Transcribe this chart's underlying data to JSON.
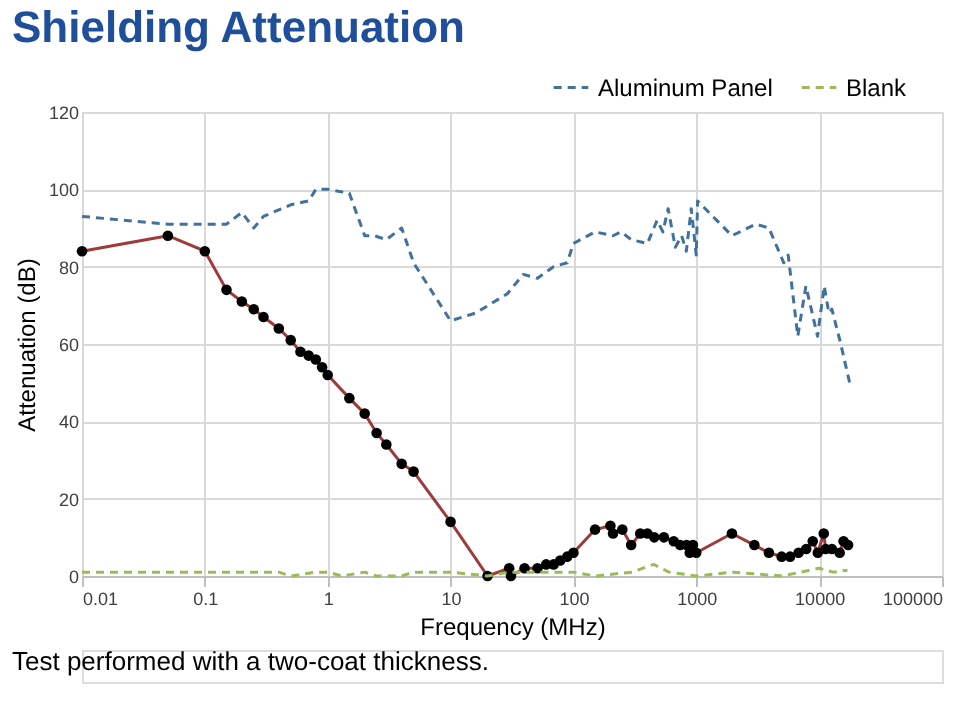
{
  "chart_data": {
    "type": "line",
    "title": "Shielding Attenuation",
    "xlabel": "Frequency (MHz)",
    "ylabel": "Attenuation (dB)",
    "annotations": [
      "Test performed with a two-coat thickness."
    ],
    "log": "x",
    "xlim": [
      0.01,
      100000
    ],
    "xticks": [
      0.01,
      0.1,
      1,
      10,
      100,
      1000,
      10000,
      100000
    ],
    "ylim": [
      0,
      120
    ],
    "yticks": [
      0,
      20,
      40,
      60,
      80,
      100,
      120
    ],
    "grid": true,
    "legend": "top right",
    "series": [
      {
        "name": "Aluminum Panel",
        "color": "#41719c",
        "line_style": "dashed",
        "marker": "none",
        "x": [
          0.01,
          0.05,
          0.15,
          0.2,
          0.25,
          0.3,
          0.5,
          0.7,
          0.8,
          1,
          1.5,
          2,
          2.4,
          3,
          4,
          5,
          10,
          16,
          29,
          39,
          51,
          69,
          89,
          100,
          150,
          210,
          245,
          295,
          400,
          480,
          535,
          590,
          675,
          760,
          830,
          910,
          1000,
          1025,
          1950,
          3050,
          3900,
          5150,
          5600,
          6700,
          7800,
          9700,
          11000,
          12000,
          12700,
          15000,
          17700
        ],
        "values": [
          93,
          91,
          91,
          94,
          90,
          93,
          96,
          97,
          100,
          100,
          99,
          88,
          88,
          87,
          90,
          81,
          66,
          68,
          73,
          78,
          77,
          80,
          81,
          86,
          89,
          88,
          89,
          87,
          86,
          92,
          89,
          95,
          85,
          88,
          84,
          95,
          83,
          97,
          88,
          91,
          90,
          81,
          83,
          62,
          75,
          62,
          75,
          68,
          69,
          60,
          50
        ]
      },
      {
        "color": "#9e3a3a",
        "line_style": "solid",
        "marker": "circle",
        "x": [
          0.01,
          0.05,
          0.1,
          0.15,
          0.2,
          0.25,
          0.3,
          0.4,
          0.5,
          0.6,
          0.7,
          0.8,
          0.9,
          1,
          1.5,
          2,
          2.5,
          3,
          4,
          5,
          10,
          20,
          30,
          31,
          40,
          51,
          60,
          69,
          78,
          89,
          100,
          150,
          200,
          210,
          250,
          295,
          350,
          400,
          455,
          545,
          655,
          740,
          835,
          885,
          940,
          1000,
          1950,
          2970,
          3900,
          4950,
          5800,
          6800,
          7850,
          8870,
          9750,
          10900,
          11300,
          12700,
          14700,
          15800,
          17200
        ],
        "values": [
          84,
          88,
          84,
          74,
          71,
          69,
          67,
          64,
          61,
          58,
          57,
          56,
          54,
          52,
          46,
          42,
          37,
          34,
          29,
          27,
          14,
          0,
          2,
          0,
          2,
          2,
          3,
          3,
          4,
          5,
          6,
          12,
          13,
          11,
          12,
          8,
          11,
          11,
          10,
          10,
          9,
          8,
          8,
          6,
          8,
          6,
          11,
          8,
          6,
          5,
          5,
          6,
          7,
          9,
          6,
          11,
          7,
          7,
          6,
          9,
          8
        ]
      },
      {
        "name": "Blank",
        "color": "#9bbb59",
        "line_style": "dashed",
        "marker": "none",
        "x": [
          0.01,
          0.4,
          0.5,
          0.8,
          1,
          1.3,
          2,
          2.5,
          4,
          5,
          10,
          20,
          30,
          50,
          100,
          150,
          300,
          450,
          600,
          1000,
          2000,
          5000,
          10000,
          13000,
          17000
        ],
        "values": [
          1,
          1,
          0,
          1,
          1,
          0,
          1,
          0,
          0,
          1,
          1,
          0,
          1,
          1,
          1,
          0,
          1,
          3,
          1,
          0,
          1,
          0,
          2,
          1,
          1.5
        ]
      }
    ]
  }
}
